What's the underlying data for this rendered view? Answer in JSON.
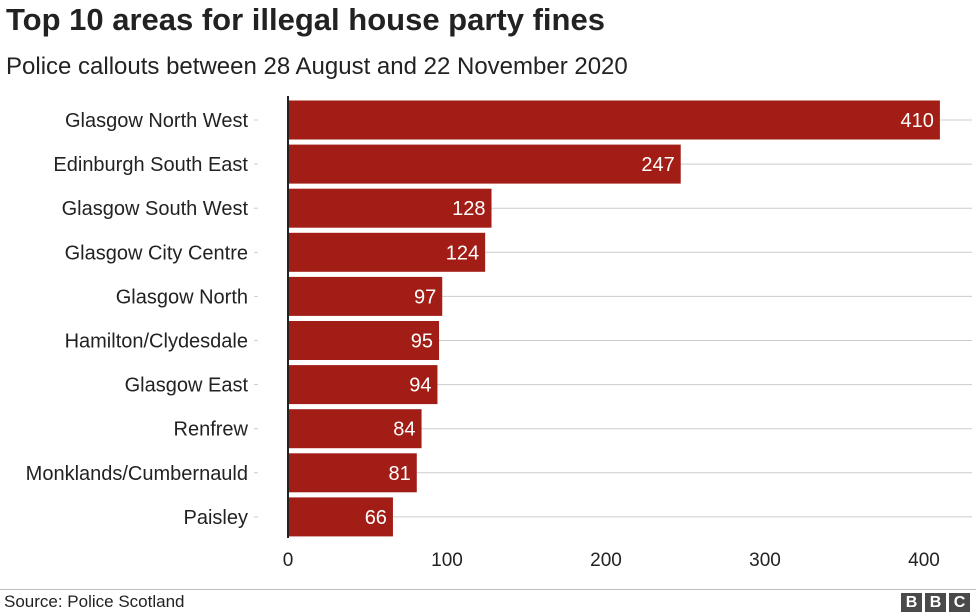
{
  "header": {
    "title": "Top 10 areas for illegal house party fines",
    "subtitle": "Police callouts between 28 August and 22 November 2020"
  },
  "footer": {
    "source": "Source: Police Scotland",
    "logo_text": "BBC",
    "logo_letters": [
      "B",
      "B",
      "C"
    ]
  },
  "colors": {
    "bar": "#a21d15",
    "grid": "#cccccc",
    "axis": "#222222",
    "text": "#222222",
    "bar_label": "#ffffff"
  },
  "chart_data": {
    "type": "bar",
    "orientation": "horizontal",
    "title": "Top 10 areas for illegal house party fines",
    "subtitle": "Police callouts between 28 August and 22 November 2020",
    "categories": [
      "Glasgow North West",
      "Edinburgh South East",
      "Glasgow South West",
      "Glasgow City Centre",
      "Glasgow North",
      "Hamilton/Clydesdale",
      "Glasgow East",
      "Renfrew",
      "Monklands/Cumbernauld",
      "Paisley"
    ],
    "values": [
      410,
      247,
      128,
      124,
      97,
      95,
      94,
      84,
      81,
      66
    ],
    "xlim": [
      0,
      420
    ],
    "xticks": [
      0,
      100,
      200,
      300,
      400
    ],
    "xlabel": "",
    "ylabel": "",
    "grid": true,
    "data_labels": true,
    "legend": "none",
    "source": "Source: Police Scotland"
  }
}
